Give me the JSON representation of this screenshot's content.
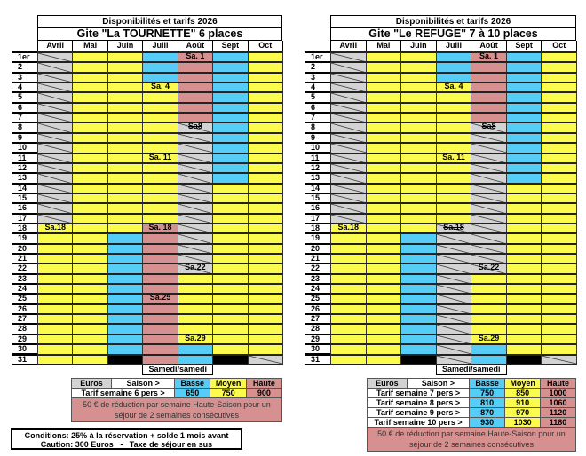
{
  "header": "Disponibilités et tarifs 2026",
  "months": [
    "Avril",
    "Mai",
    "Juin",
    "Juill",
    "Août",
    "Sept",
    "Oct"
  ],
  "day_labels": [
    "1er",
    "2",
    "3",
    "4",
    "5",
    "6",
    "7",
    "8",
    "9",
    "10",
    "11",
    "12",
    "13",
    "14",
    "15",
    "16",
    "17",
    "18",
    "19",
    "20",
    "21",
    "22",
    "23",
    "24",
    "25",
    "26",
    "27",
    "28",
    "29",
    "30",
    "31"
  ],
  "legend_codes": {
    "y": "yellow-moyen",
    "b": "blue-basse",
    "r": "pink-haute",
    "g": "unavailable-hatched",
    "k": "no-day"
  },
  "colors": {
    "yellow": "#fbfb4e",
    "blue": "#55cdf7",
    "pink": "#d69090",
    "gray": "#d3d3d3",
    "black": "#000000"
  },
  "calendars": [
    {
      "title": "Gite \"La TOURNETTE\" 6 places",
      "footer": "Samedi/samedi",
      "columns": [
        "gggggggggggggggggyyyyyyyyyyyyyy",
        "yyyyyyyyyyyyyyyyyyyyyyyyyyyyyyy",
        "yyyyyyyyyyyyyyyyyybbbbbbbbbbbbk",
        "bbbyyyyyyyyyyyyyyrrrrrrrrrrrrrr",
        "rrrrrrrgggggggggggggggyyyyyyybbb",
        "bbbbbbbbbbbbbyyyyyyyyyyyyyyyyyk",
        "yyyyyyyyyyyyyyyyyyyyyyyyyyyyyyg"
      ],
      "labels": [
        {
          "col": 4,
          "day": 1,
          "text": "Sa. 1"
        },
        {
          "col": 3,
          "day": 4,
          "text": "Sa. 4"
        },
        {
          "col": 4,
          "day": 8,
          "text": "Sa8",
          "strike": true
        },
        {
          "col": 3,
          "day": 11,
          "text": "Sa. 11"
        },
        {
          "col": 0,
          "day": 18,
          "text": "Sa.18"
        },
        {
          "col": 3,
          "day": 18,
          "text": "Sa. 18"
        },
        {
          "col": 4,
          "day": 22,
          "text": "Sa.22"
        },
        {
          "col": 3,
          "day": 25,
          "text": "Sa.25"
        },
        {
          "col": 4,
          "day": 29,
          "text": "Sa.29"
        }
      ]
    },
    {
      "title": "Gite \"Le REFUGE\" 7 à 10 places",
      "footer": "Samedi/samedi",
      "columns": [
        "gggggggggggggggggyyyyyyyyyyyyyy",
        "yyyyyyyyyyyyyyyyyyyyyyyyyyyyyyy",
        "yyyyyyyyyyyyyyyyyybbbbbbbbbbbbk",
        "bbbyyyyyyyyyyyyyygggggggggggggg",
        "rrrrrrrgggggggggggggggyyyyyyybbb",
        "bbbbbbbbbbbbbyyyyyyyyyyyyyyyyyk",
        "yyyyyyyyyyyyyyyyyyyyyyyyyyyyyyg"
      ],
      "labels": [
        {
          "col": 4,
          "day": 1,
          "text": "Sa. 1"
        },
        {
          "col": 3,
          "day": 4,
          "text": "Sa. 4"
        },
        {
          "col": 4,
          "day": 8,
          "text": "Sa8",
          "strike": true
        },
        {
          "col": 3,
          "day": 11,
          "text": "Sa. 11"
        },
        {
          "col": 0,
          "day": 18,
          "text": "Sa.18"
        },
        {
          "col": 3,
          "day": 18,
          "text": "Sa.18",
          "strike": true
        },
        {
          "col": 4,
          "day": 22,
          "text": "Sa.22"
        },
        {
          "col": 4,
          "day": 29,
          "text": "Sa.29"
        }
      ]
    }
  ],
  "pricing": {
    "euros": "Euros",
    "saison": "Saison >",
    "basse": "Basse",
    "moyen": "Moyen",
    "haute": "Haute",
    "note": "50 € de réduction par semaine Haute-Saison pour un séjour de 2 semaines consécutives",
    "tournette": [
      {
        "label": "Tarif semaine 6 pers >",
        "basse": "650",
        "moyen": "750",
        "haute": "900"
      }
    ],
    "refuge": [
      {
        "label": "Tarif semaine 7 pers >",
        "basse": "750",
        "moyen": "850",
        "haute": "1000"
      },
      {
        "label": "Tarif semaine 8 pers >",
        "basse": "810",
        "moyen": "910",
        "haute": "1060"
      },
      {
        "label": "Tarif semaine 9 pers >",
        "basse": "870",
        "moyen": "970",
        "haute": "1120"
      },
      {
        "label": "Tarif semaine 10 pers >",
        "basse": "930",
        "moyen": "1030",
        "haute": "1180"
      }
    ]
  },
  "conditions": {
    "line1": "Conditions: 25% à la réservation + solde 1 mois avant",
    "line2": "Caution: 300 Euros   -   Taxe de séjour en sus"
  }
}
